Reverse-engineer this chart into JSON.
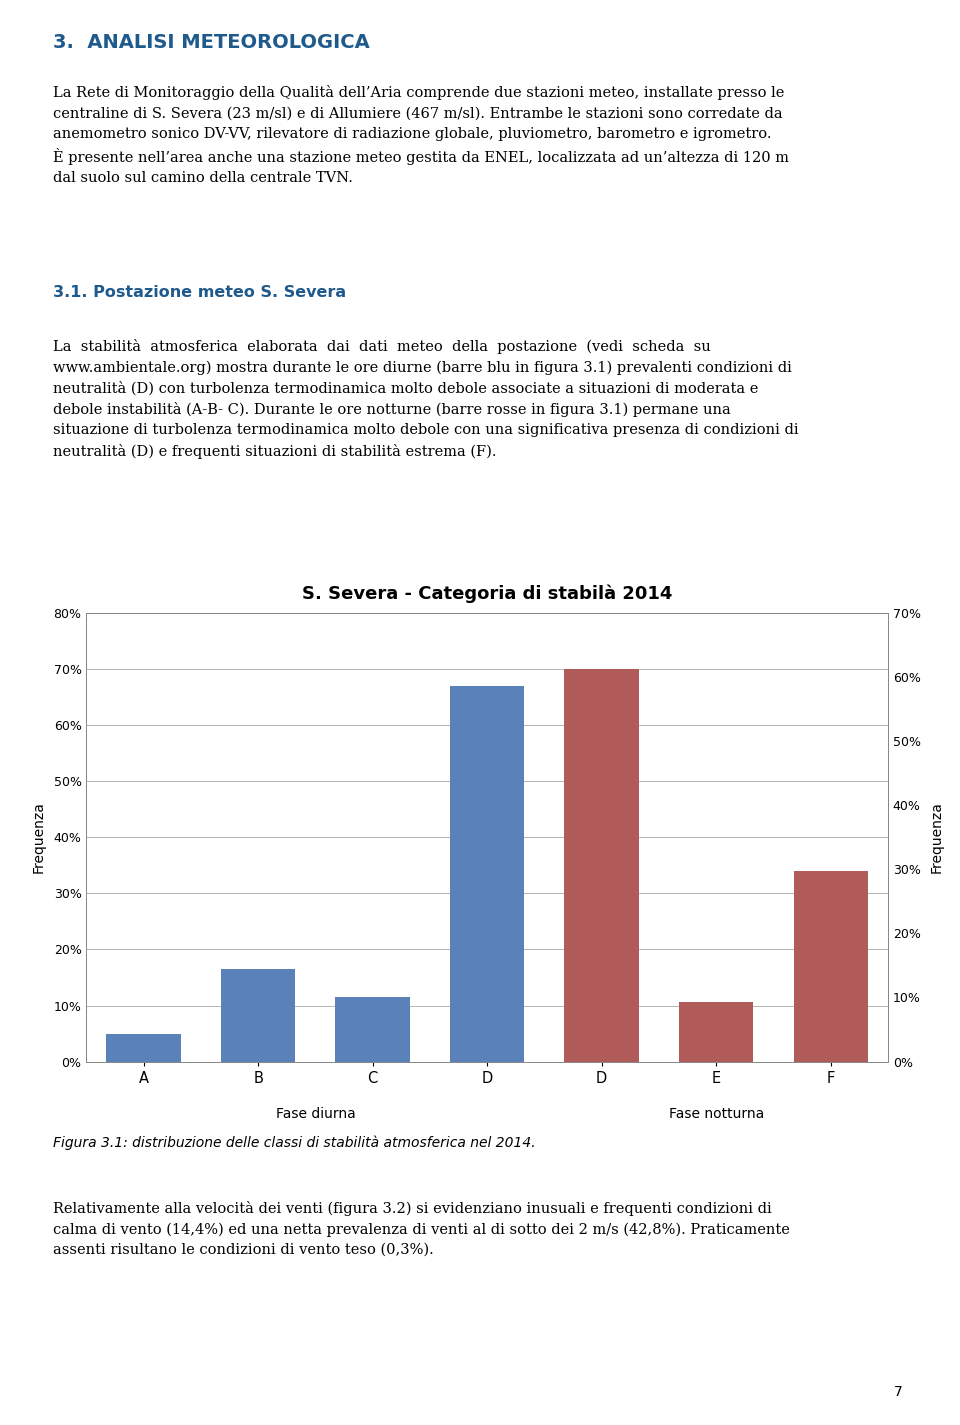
{
  "title": "S. Severa - Categoria di stabilà 2014",
  "title_fontsize": 13,
  "categories": [
    "A",
    "B",
    "C",
    "D",
    "D",
    "E",
    "F"
  ],
  "values": [
    5.0,
    16.5,
    11.5,
    67.0,
    70.0,
    10.7,
    34.0
  ],
  "colors": [
    "#5b82b8",
    "#5b82b8",
    "#5b82b8",
    "#5b82b8",
    "#b05a5a",
    "#b05a5a",
    "#b05a5a"
  ],
  "ylabel_left": "Frequenza",
  "ylabel_right": "Frequenza",
  "ylim_left": [
    0,
    80
  ],
  "ylim_right": [
    0,
    70
  ],
  "yticks_left": [
    0,
    10,
    20,
    30,
    40,
    50,
    60,
    70,
    80
  ],
  "yticks_right": [
    0,
    10,
    20,
    30,
    40,
    50,
    60,
    70
  ],
  "grid_color": "#aaaaaa",
  "bar_width": 0.65,
  "heading": "3.  ANALISI METEOROLOGICA",
  "para1": "La Rete di Monitoraggio della Qualità dell’Aria comprende due stazioni meteo, installate presso le\ncentraline di S. Severa (23 m/sl) e di Allumiere (467 m/sl). Entrambe le stazioni sono corredate da\nanemometro sonico DV-VV, rilevatore di radiazione globale, pluviometro, barometro e igrometro.\nÈ presente nell’area anche una stazione meteo gestita da ENEL, localizzata ad un’altezza di 120 m\ndal suolo sul camino della centrale TVN.",
  "subheading": "3.1. Postazione meteo S. Severa",
  "para2": "La  stabilità  atmosferica  elaborata  dai  dati  meteo  della  postazione  (vedi  scheda  su\nwww.ambientale.org) mostra durante le ore diurne (barre blu in figura 3.1) prevalenti condizioni di\nneutralità (D) con turbolenza termodinamica molto debole associate a situazioni di moderata e\ndebole instabilità (A-B- C). Durante le ore notturne (barre rosse in figura 3.1) permane una\nsituazione di turbolenza termodinamica molto debole con una significativa presenza di condizioni di\nneutralità (D) e frequenti situazioni di stabilità estrema (F).",
  "caption": "Figura 3.1: distribuzione delle classi di stabilità atmosferica nel 2014.",
  "para3": "Relativamente alla velocità dei venti (figura 3.2) si evidenziano inusuali e frequenti condizioni di\ncalma di vento (14,4%) ed una netta prevalenza di venti al di sotto dei 2 m/s (42,8%). Praticamente\nassenti risultano le condizioni di vento teso (0,3%).",
  "page_number": "7",
  "fase_diurna_label": "Fase diurna",
  "fase_notturna_label": "Fase notturna",
  "heading_color": "#1f5a8c",
  "subheading_color": "#1f5a8c",
  "text_color": "#000000",
  "background_color": "#ffffff"
}
